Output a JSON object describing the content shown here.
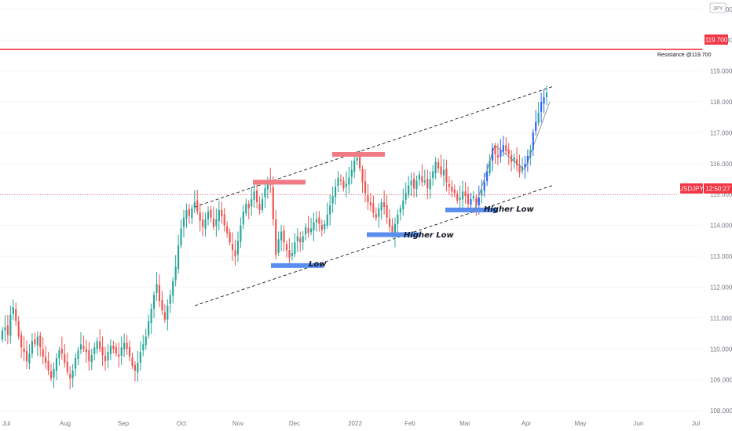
{
  "chart_data": {
    "type": "candlestick",
    "symbol": "USDJPY",
    "currency_badge": "JPY",
    "y_axis": {
      "range": [
        107.9,
        121.3
      ],
      "ticks": [
        "121.000",
        "120.000",
        "119.000",
        "118.000",
        "117.000",
        "116.000",
        "115.000",
        "114.000",
        "113.000",
        "112.000",
        "111.000",
        "110.000",
        "109.000",
        "108.000"
      ]
    },
    "x_axis": {
      "labels": [
        "Jul",
        "Aug",
        "Sep",
        "Oct",
        "Nov",
        "Dec",
        "2022",
        "Feb",
        "Mar",
        "Apr",
        "May",
        "Jun",
        "Jul"
      ]
    },
    "price_tag": {
      "symbol": "USDJPY",
      "time": "12:50:27",
      "value": 115.0
    },
    "resistance": {
      "value": 119.7,
      "tag": "119.700",
      "label": "Resistance @119.700"
    },
    "annotations": [
      "Low",
      "Higher Low",
      "Higher Low"
    ],
    "channel": {
      "upper": [
        [
          0.0,
          114.6
        ],
        [
          1.0,
          118.5
        ]
      ],
      "lower": [
        [
          0.0,
          111.4
        ],
        [
          1.0,
          115.3
        ]
      ]
    },
    "zones": [
      {
        "kind": "resistance",
        "value": 115.4
      },
      {
        "kind": "resistance",
        "value": 116.3
      },
      {
        "kind": "support",
        "value": 112.7
      },
      {
        "kind": "support",
        "value": 113.7
      },
      {
        "kind": "support",
        "value": 114.5
      }
    ],
    "colors": {
      "up": "#26a69a",
      "up_alt": "#2962ff",
      "down": "#ef5350",
      "resistance_line": "#f23645",
      "support_zone": "#5b8def",
      "resistance_zone": "#f07b84"
    },
    "closes": [
      110.6,
      110.7,
      110.45,
      111.1,
      111.35,
      110.9,
      110.4,
      110.05,
      109.9,
      109.6,
      109.85,
      110.25,
      110.15,
      110.4,
      110.05,
      109.75,
      109.55,
      109.3,
      109.05,
      109.35,
      109.7,
      109.95,
      109.85,
      109.55,
      109.25,
      109.05,
      109.3,
      109.7,
      109.95,
      110.15,
      110.0,
      109.9,
      109.6,
      109.8,
      110.05,
      110.25,
      110.0,
      109.8,
      109.6,
      109.9,
      110.1,
      110.0,
      109.85,
      109.75,
      110.05,
      110.2,
      110.0,
      109.75,
      109.45,
      109.3,
      109.55,
      109.9,
      110.15,
      110.4,
      110.9,
      111.3,
      111.75,
      112.1,
      111.55,
      111.25,
      110.95,
      111.4,
      111.75,
      112.2,
      112.65,
      113.35,
      113.9,
      114.25,
      114.5,
      114.3,
      114.55,
      114.75,
      114.45,
      114.15,
      113.95,
      114.2,
      114.45,
      114.25,
      113.95,
      114.2,
      114.5,
      114.3,
      114.0,
      113.75,
      113.45,
      113.2,
      113.0,
      113.5,
      114.0,
      114.45,
      114.7,
      114.55,
      114.85,
      115.1,
      114.75,
      114.5,
      114.85,
      115.2,
      115.45,
      115.3,
      114.2,
      113.05,
      113.55,
      113.8,
      113.45,
      113.2,
      112.95,
      113.1,
      113.45,
      113.65,
      113.45,
      113.65,
      113.95,
      113.75,
      113.9,
      114.1,
      114.2,
      114.05,
      113.85,
      114.05,
      114.35,
      114.65,
      114.95,
      115.25,
      115.55,
      115.45,
      115.2,
      115.35,
      115.55,
      115.8,
      116.1,
      116.2,
      115.85,
      115.4,
      115.05,
      114.75,
      114.65,
      114.4,
      114.25,
      114.55,
      114.75,
      114.6,
      114.25,
      113.95,
      113.7,
      114.05,
      114.35,
      114.55,
      114.8,
      115.05,
      115.3,
      115.45,
      115.2,
      115.45,
      115.65,
      115.4,
      115.45,
      115.2,
      115.5,
      115.75,
      116.05,
      115.85,
      115.65,
      115.8,
      115.4,
      115.25,
      115.1,
      115.05,
      114.8,
      114.9,
      115.1,
      114.95,
      114.7,
      114.85,
      114.95,
      114.65,
      114.9,
      115.15,
      115.4,
      115.75,
      116.1,
      116.5,
      116.3,
      116.2,
      116.45,
      116.6,
      116.4,
      116.3,
      116.05,
      116.2,
      115.95,
      115.7,
      115.9,
      116.0,
      116.25,
      116.45,
      117.0,
      117.35,
      117.65,
      118.0,
      118.15,
      118.3
    ]
  }
}
